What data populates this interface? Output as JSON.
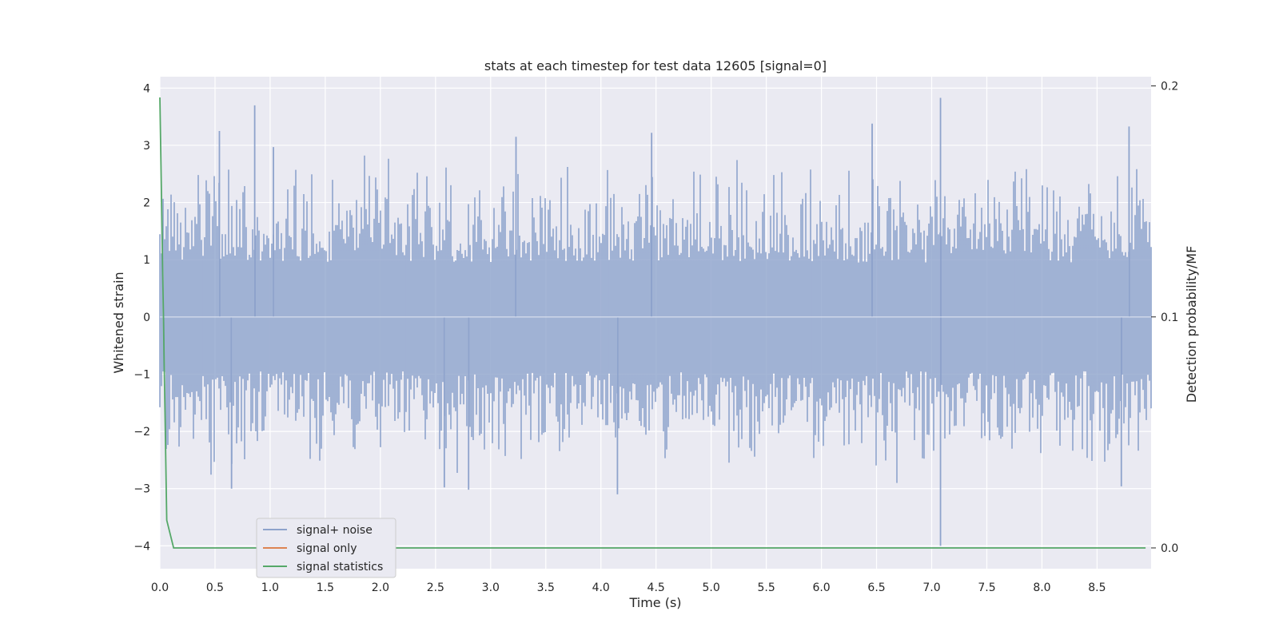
{
  "chart_data": {
    "type": "line",
    "title": "stats at each timestep for test data 12605 [signal=0]",
    "xlabel": "Time (s)",
    "ylabel": "Whitened strain",
    "y2label": "Detection probability/MF",
    "xlim": [
      0.0,
      8.99
    ],
    "ylim": [
      -4.4,
      4.2
    ],
    "y2lim": [
      -0.009,
      0.204
    ],
    "x_ticks": [
      "0.0",
      "0.5",
      "1.0",
      "1.5",
      "2.0",
      "2.5",
      "3.0",
      "3.5",
      "4.0",
      "4.5",
      "5.0",
      "5.5",
      "6.0",
      "6.5",
      "7.0",
      "7.5",
      "8.0",
      "8.5"
    ],
    "y_ticks": [
      "4",
      "3",
      "2",
      "1",
      "0",
      "−1",
      "−2",
      "−3",
      "−4"
    ],
    "y2_ticks": [
      "0.2",
      "0.1",
      "0.0"
    ],
    "grid": true,
    "legend_position": "lower-left",
    "colors": {
      "signal_noise": "#8ea3cc",
      "signal_only": "#dd8452",
      "signal_statistics": "#55a868",
      "plot_background": "#eaeaf2",
      "grid": "#ffffff"
    },
    "series": [
      {
        "name": "signal+ noise",
        "axis": "left",
        "description": "whitened strain noise, roughly within ±2 with spikes",
        "sample_rate_hz": 2048,
        "peaks": [
          {
            "x": 0.86,
            "y": 3.7
          },
          {
            "x": 1.03,
            "y": 2.97
          },
          {
            "x": 0.54,
            "y": 3.25
          },
          {
            "x": 3.23,
            "y": 3.15
          },
          {
            "x": 4.46,
            "y": 3.22
          },
          {
            "x": 6.46,
            "y": 3.38
          },
          {
            "x": 7.08,
            "y": 3.83
          },
          {
            "x": 8.79,
            "y": 3.33
          },
          {
            "x": 7.08,
            "y": -4.0
          },
          {
            "x": 4.15,
            "y": -3.1
          },
          {
            "x": 2.8,
            "y": -3.02
          },
          {
            "x": 0.65,
            "y": -3.0
          },
          {
            "x": 2.58,
            "y": -2.98
          },
          {
            "x": 8.72,
            "y": -2.96
          }
        ]
      },
      {
        "name": "signal only",
        "axis": "left",
        "x": [],
        "y": []
      },
      {
        "name": "signal statistics",
        "axis": "right",
        "x": [
          0.0,
          0.0625,
          0.125,
          0.25,
          8.94
        ],
        "y": [
          0.195,
          0.012,
          0.0,
          0.0,
          0.0
        ]
      }
    ]
  }
}
